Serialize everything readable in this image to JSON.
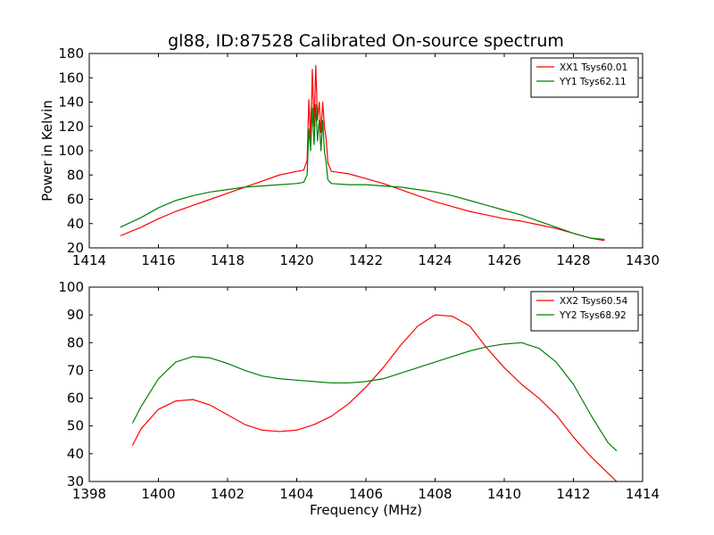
{
  "chart_data": [
    {
      "type": "line",
      "title": "gl88, ID:87528 Calibrated On-source spectrum",
      "xlabel": "",
      "ylabel": "Power in Kelvin",
      "xlim": [
        1414,
        1430
      ],
      "ylim": [
        20,
        180
      ],
      "xticks": [
        1414,
        1416,
        1418,
        1420,
        1422,
        1424,
        1426,
        1428,
        1430
      ],
      "yticks": [
        20,
        40,
        60,
        80,
        100,
        120,
        140,
        160,
        180
      ],
      "grid": false,
      "legend_position": "top-right",
      "series": [
        {
          "name": "XX1 Tsys60.01",
          "color": "#ff0000",
          "x": [
            1414.9,
            1415.5,
            1416.0,
            1416.5,
            1417.0,
            1417.5,
            1418.0,
            1418.5,
            1419.0,
            1419.5,
            1420.0,
            1420.2,
            1420.3,
            1420.35,
            1420.4,
            1420.45,
            1420.5,
            1420.55,
            1420.6,
            1420.65,
            1420.7,
            1420.75,
            1420.8,
            1420.85,
            1420.9,
            1421.0,
            1421.5,
            1422.0,
            1422.5,
            1423.0,
            1423.5,
            1424.0,
            1424.5,
            1425.0,
            1425.5,
            1426.0,
            1426.5,
            1427.0,
            1427.5,
            1428.0,
            1428.5,
            1428.9
          ],
          "y": [
            30,
            37,
            44,
            50,
            55,
            60,
            65,
            70,
            75,
            80,
            83,
            84,
            92,
            142,
            110,
            167,
            120,
            170,
            125,
            140,
            115,
            140,
            120,
            110,
            90,
            83,
            81,
            77,
            73,
            68,
            63,
            58,
            54,
            50,
            47,
            44,
            42,
            39,
            36,
            32,
            28,
            26
          ]
        },
        {
          "name": "YY1 Tsys62.11",
          "color": "#008000",
          "x": [
            1414.9,
            1415.5,
            1416.0,
            1416.5,
            1417.0,
            1417.5,
            1418.0,
            1418.5,
            1419.0,
            1419.5,
            1420.0,
            1420.2,
            1420.3,
            1420.35,
            1420.4,
            1420.45,
            1420.5,
            1420.55,
            1420.6,
            1420.65,
            1420.7,
            1420.75,
            1420.8,
            1420.85,
            1420.9,
            1421.0,
            1421.5,
            1422.0,
            1422.5,
            1423.0,
            1423.5,
            1424.0,
            1424.5,
            1425.0,
            1425.5,
            1426.0,
            1426.5,
            1427.0,
            1427.5,
            1428.0,
            1428.5,
            1428.9
          ],
          "y": [
            37,
            45,
            53,
            59,
            63,
            66,
            68,
            70,
            71,
            72,
            73,
            74,
            80,
            118,
            100,
            135,
            105,
            138,
            108,
            125,
            100,
            125,
            100,
            90,
            76,
            73,
            72,
            72,
            71,
            70,
            68,
            66,
            63,
            59,
            55,
            51,
            47,
            42,
            37,
            32,
            28,
            27
          ]
        }
      ]
    },
    {
      "type": "line",
      "title": "",
      "xlabel": "Frequency (MHz)",
      "ylabel": "",
      "xlim": [
        1398,
        1414
      ],
      "ylim": [
        30,
        100
      ],
      "xticks": [
        1398,
        1400,
        1402,
        1404,
        1406,
        1408,
        1410,
        1412,
        1414
      ],
      "yticks": [
        30,
        40,
        50,
        60,
        70,
        80,
        90,
        100
      ],
      "grid": false,
      "legend_position": "top-right",
      "series": [
        {
          "name": "XX2 Tsys60.54",
          "color": "#ff0000",
          "x": [
            1399.25,
            1399.5,
            1400.0,
            1400.5,
            1401.0,
            1401.5,
            1402.0,
            1402.5,
            1403.0,
            1403.5,
            1404.0,
            1404.5,
            1405.0,
            1405.5,
            1406.0,
            1406.5,
            1407.0,
            1407.5,
            1408.0,
            1408.5,
            1409.0,
            1409.5,
            1410.0,
            1410.5,
            1411.0,
            1411.5,
            1412.0,
            1412.5,
            1413.0,
            1413.25
          ],
          "y": [
            43,
            49,
            56,
            59,
            59.5,
            57.5,
            54,
            50.5,
            48.5,
            48,
            48.5,
            50.5,
            53.5,
            58,
            64,
            71,
            79,
            86,
            90,
            89.5,
            86,
            78,
            71,
            65,
            60,
            54,
            46,
            39,
            33,
            30
          ]
        },
        {
          "name": "YY2 Tsys68.92",
          "color": "#008000",
          "x": [
            1399.25,
            1399.5,
            1400.0,
            1400.5,
            1401.0,
            1401.5,
            1402.0,
            1402.5,
            1403.0,
            1403.5,
            1404.0,
            1404.5,
            1405.0,
            1405.5,
            1406.0,
            1406.5,
            1407.0,
            1407.5,
            1408.0,
            1408.5,
            1409.0,
            1409.5,
            1410.0,
            1410.5,
            1411.0,
            1411.5,
            1412.0,
            1412.5,
            1413.0,
            1413.25
          ],
          "y": [
            51,
            57,
            67,
            73,
            75,
            74.5,
            72.5,
            70,
            68,
            67,
            66.5,
            66,
            65.5,
            65.5,
            66,
            67,
            69,
            71,
            73,
            75,
            77,
            78.5,
            79.5,
            80,
            78,
            73,
            65,
            54,
            44,
            41
          ]
        }
      ]
    }
  ]
}
